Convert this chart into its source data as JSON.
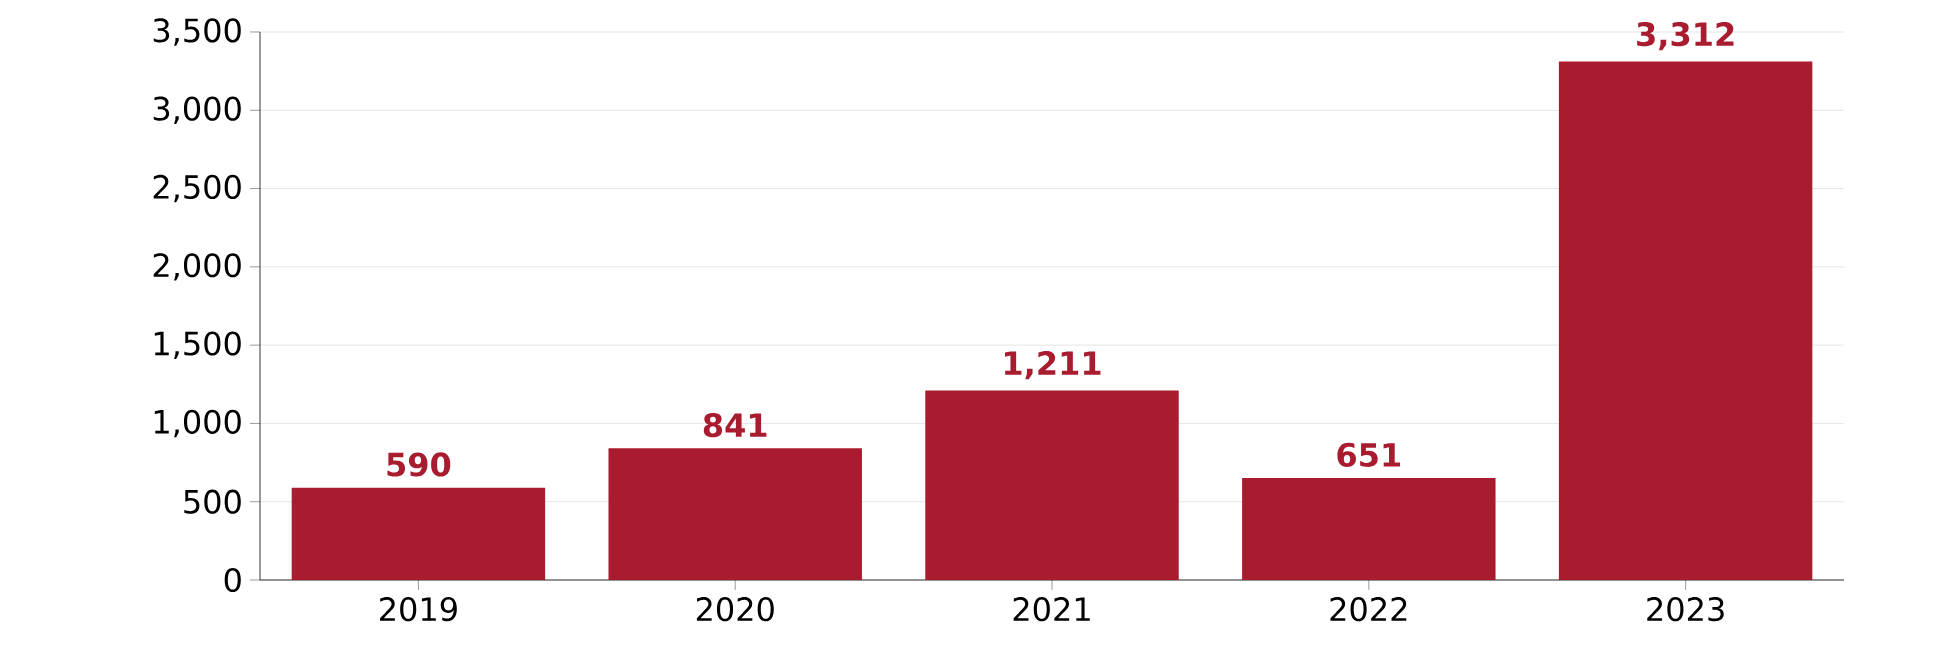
{
  "chart_data": {
    "type": "bar",
    "categories": [
      "2019",
      "2020",
      "2021",
      "2022",
      "2023"
    ],
    "values": [
      590,
      841,
      1211,
      651,
      3312
    ],
    "value_labels": [
      "590",
      "841",
      "1,211",
      "651",
      "3,312"
    ],
    "color": "#a91b2e",
    "ylim": [
      0,
      3500
    ],
    "yticks": [
      0,
      500,
      {
        "value": 1000,
        "label": "1,000"
      },
      {
        "value": 1500,
        "label": "1,500"
      },
      {
        "value": 2000,
        "label": "2,000"
      },
      {
        "value": 2500,
        "label": "2,500"
      },
      {
        "value": 3000,
        "label": "3,000"
      },
      {
        "value": 3500,
        "label": "3,500"
      }
    ],
    "grid": "y"
  }
}
